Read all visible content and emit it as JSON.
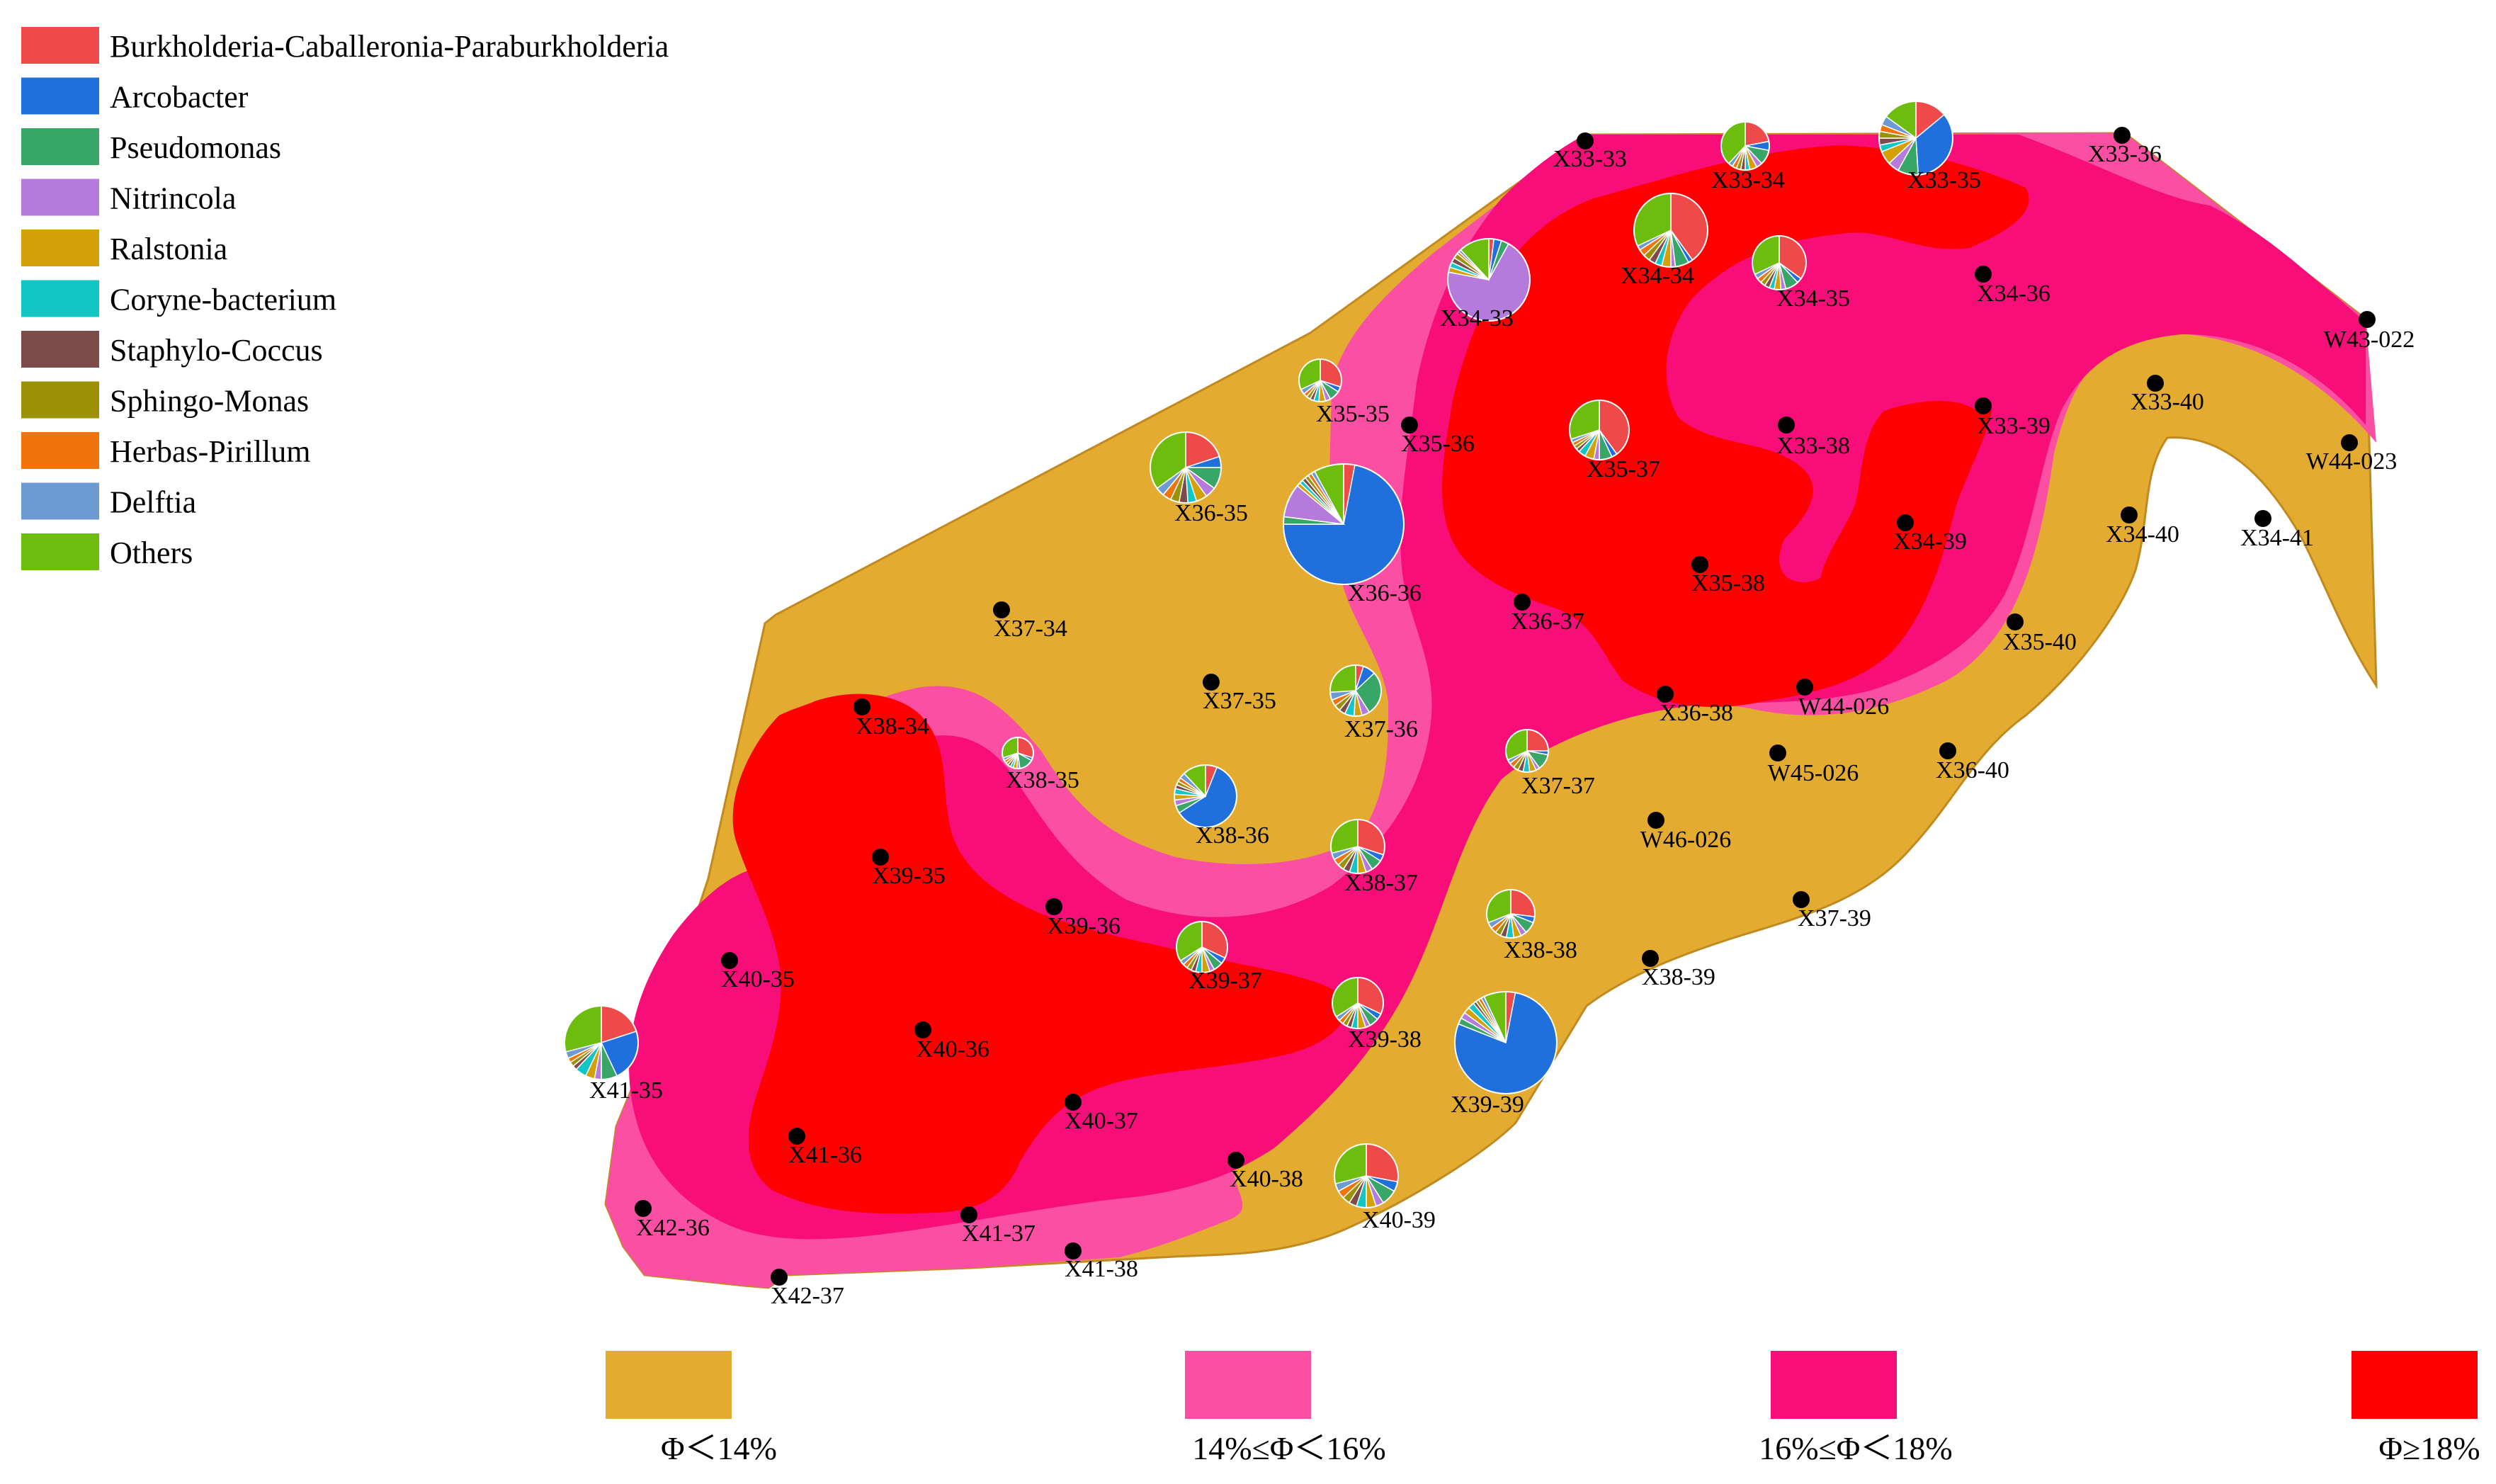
{
  "colors": {
    "phi_lt14": "#e3ab2f",
    "phi_14_16": "#fb4fa3",
    "phi_16_18": "#f70e78",
    "phi_ge18": "#fe0000",
    "boundary": "#c08a20",
    "well": "#000000"
  },
  "legend": {
    "genera": [
      {
        "name": "Burkholderia-Caballeronia-Paraburkholderia",
        "color": "#ef4a4a"
      },
      {
        "name": "Arcobacter",
        "color": "#1f6fdc"
      },
      {
        "name": "Pseudomonas",
        "color": "#38a667"
      },
      {
        "name": "Nitrincola",
        "color": "#b57bdc"
      },
      {
        "name": "Ralstonia",
        "color": "#d4a008"
      },
      {
        "name": "Coryne-bacterium",
        "color": "#12c6c6"
      },
      {
        "name": "Staphylo-Coccus",
        "color": "#7e4b4b"
      },
      {
        "name": "Sphingo-Monas",
        "color": "#9c9106"
      },
      {
        "name": "Herbas-Pirillum",
        "color": "#f0730c"
      },
      {
        "name": "Delftia",
        "color": "#6b9bd2"
      },
      {
        "name": "Others",
        "color": "#6cbd0e"
      }
    ],
    "porosity_classes": [
      {
        "label": "Φ＜14%",
        "color_key": "phi_lt14"
      },
      {
        "label": "14%≤Φ＜16%",
        "color_key": "phi_14_16"
      },
      {
        "label": "16%≤Φ＜18%",
        "color_key": "phi_16_18"
      },
      {
        "label": "Φ≥18%",
        "color_key": "phi_ge18"
      }
    ]
  },
  "wells": [
    "X33-33",
    "X33-36",
    "W43-022",
    "X34-36",
    "X33-40",
    "W44-023",
    "X33-38",
    "X33-39",
    "X34-40",
    "X34-41",
    "X34-39",
    "X35-38",
    "X35-40",
    "X36-37",
    "X36-38",
    "W44-026",
    "W45-026",
    "X36-40",
    "W46-026",
    "X37-39",
    "X38-39",
    "X35-36",
    "X37-34",
    "X37-35",
    "X38-34",
    "X39-35",
    "X39-36",
    "X40-35",
    "X40-36",
    "X41-36",
    "X41-37",
    "X40-37",
    "X40-38",
    "X41-38",
    "X42-36",
    "X42-37"
  ],
  "pie_wells": [
    {
      "name": "X33-34",
      "fractions": [
        0.22,
        0.06,
        0.1,
        0.04,
        0.05,
        0.03,
        0.03,
        0.03,
        0.03,
        0.03,
        0.38
      ]
    },
    {
      "name": "X33-35",
      "fractions": [
        0.14,
        0.35,
        0.09,
        0.05,
        0.06,
        0.03,
        0.03,
        0.03,
        0.03,
        0.04,
        0.15
      ]
    },
    {
      "name": "X34-33",
      "fractions": [
        0.02,
        0.03,
        0.03,
        0.7,
        0.02,
        0.02,
        0.02,
        0.02,
        0.01,
        0.01,
        0.12
      ]
    },
    {
      "name": "X34-34",
      "fractions": [
        0.4,
        0.02,
        0.06,
        0.02,
        0.04,
        0.03,
        0.03,
        0.03,
        0.03,
        0.02,
        0.32
      ]
    },
    {
      "name": "X34-35",
      "fractions": [
        0.35,
        0.03,
        0.08,
        0.03,
        0.04,
        0.03,
        0.03,
        0.03,
        0.03,
        0.03,
        0.32
      ]
    },
    {
      "name": "X35-35",
      "fractions": [
        0.3,
        0.04,
        0.08,
        0.04,
        0.05,
        0.04,
        0.03,
        0.03,
        0.03,
        0.04,
        0.32
      ]
    },
    {
      "name": "X35-37",
      "fractions": [
        0.4,
        0.03,
        0.07,
        0.03,
        0.05,
        0.04,
        0.02,
        0.02,
        0.02,
        0.02,
        0.3
      ]
    },
    {
      "name": "X36-35",
      "fractions": [
        0.2,
        0.05,
        0.1,
        0.05,
        0.05,
        0.04,
        0.04,
        0.04,
        0.04,
        0.04,
        0.35
      ]
    },
    {
      "name": "X36-36",
      "fractions": [
        0.03,
        0.72,
        0.02,
        0.09,
        0.01,
        0.01,
        0.01,
        0.01,
        0.01,
        0.01,
        0.08
      ]
    },
    {
      "name": "X37-36",
      "fractions": [
        0.05,
        0.08,
        0.28,
        0.05,
        0.05,
        0.06,
        0.04,
        0.04,
        0.04,
        0.05,
        0.26
      ]
    },
    {
      "name": "X37-37",
      "fractions": [
        0.25,
        0.03,
        0.12,
        0.03,
        0.05,
        0.05,
        0.04,
        0.04,
        0.04,
        0.03,
        0.32
      ]
    },
    {
      "name": "X38-35",
      "fractions": [
        0.3,
        0.03,
        0.15,
        0.03,
        0.04,
        0.03,
        0.03,
        0.03,
        0.03,
        0.03,
        0.3
      ]
    },
    {
      "name": "X38-36",
      "fractions": [
        0.06,
        0.6,
        0.04,
        0.03,
        0.03,
        0.03,
        0.02,
        0.02,
        0.02,
        0.03,
        0.12
      ]
    },
    {
      "name": "X38-37",
      "fractions": [
        0.3,
        0.04,
        0.07,
        0.04,
        0.05,
        0.05,
        0.04,
        0.04,
        0.04,
        0.04,
        0.29
      ]
    },
    {
      "name": "X38-38",
      "fractions": [
        0.27,
        0.04,
        0.08,
        0.04,
        0.05,
        0.05,
        0.04,
        0.04,
        0.04,
        0.04,
        0.31
      ]
    },
    {
      "name": "X39-37",
      "fractions": [
        0.32,
        0.04,
        0.06,
        0.03,
        0.05,
        0.04,
        0.03,
        0.03,
        0.03,
        0.03,
        0.34
      ]
    },
    {
      "name": "X39-38",
      "fractions": [
        0.32,
        0.04,
        0.06,
        0.03,
        0.05,
        0.04,
        0.03,
        0.03,
        0.03,
        0.03,
        0.34
      ]
    },
    {
      "name": "X39-39",
      "fractions": [
        0.03,
        0.78,
        0.02,
        0.02,
        0.02,
        0.02,
        0.01,
        0.01,
        0.01,
        0.01,
        0.07
      ]
    },
    {
      "name": "X40-39",
      "fractions": [
        0.28,
        0.05,
        0.08,
        0.04,
        0.05,
        0.05,
        0.04,
        0.04,
        0.04,
        0.04,
        0.29
      ]
    },
    {
      "name": "X41-35",
      "fractions": [
        0.2,
        0.23,
        0.07,
        0.03,
        0.04,
        0.05,
        0.02,
        0.02,
        0.02,
        0.03,
        0.29
      ]
    }
  ]
}
